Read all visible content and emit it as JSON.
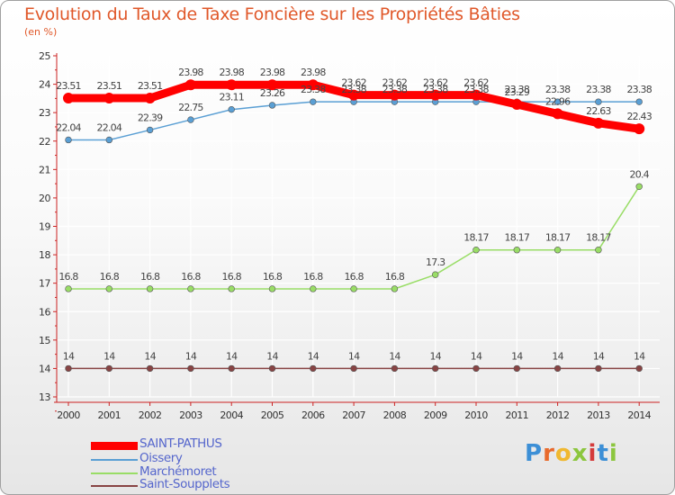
{
  "title": "Evolution du Taux de Taxe Foncière sur les Propriétés Bâties",
  "subtitle": "(en %)",
  "logo": {
    "text": "Proxiti",
    "letters": [
      "P",
      "r",
      "o",
      "x",
      "i",
      "t",
      "i"
    ],
    "colors": [
      "#3c8fd6",
      "#e86a2c",
      "#f0b830",
      "#8cc63e",
      "#d43b3b",
      "#3c8fd6",
      "#8cc63e"
    ]
  },
  "colors": {
    "title": "#e0582a",
    "axis": "#cc2222",
    "grid": "#ffffff",
    "label": "#444444"
  },
  "chart_data": {
    "type": "line",
    "title": "Evolution du Taux de Taxe Foncière sur les Propriétés Bâties",
    "ylabel": "(en %)",
    "xlabel": "",
    "ylim": [
      13,
      25
    ],
    "yticks": [
      13,
      14,
      15,
      16,
      17,
      18,
      19,
      20,
      21,
      22,
      23,
      24,
      25
    ],
    "x": [
      2000,
      2001,
      2002,
      2003,
      2004,
      2005,
      2006,
      2007,
      2008,
      2009,
      2010,
      2011,
      2012,
      2013,
      2014
    ],
    "legend_position": "bottom-left",
    "series": [
      {
        "name": "SAINT-PATHUS",
        "color": "#ff0000",
        "width": 9,
        "labels": [
          "23.51",
          "23.51",
          "23.51",
          "23.98",
          "23.98",
          "23.98",
          "23.98",
          "23.62",
          "23.62",
          "23.62",
          "23.62",
          "23.29",
          "22.96",
          "22.63",
          "22.43"
        ],
        "values": [
          23.51,
          23.51,
          23.51,
          23.98,
          23.98,
          23.98,
          23.98,
          23.62,
          23.62,
          23.62,
          23.62,
          23.29,
          22.96,
          22.63,
          22.43
        ]
      },
      {
        "name": "Oissery",
        "color": "#5a9fd4",
        "width": 1.5,
        "labels": [
          "22.04",
          "22.04",
          "22.39",
          "22.75",
          "23.11",
          "23.26",
          "23.38",
          "23.38",
          "23.38",
          "23.38",
          "23.38",
          "23.38",
          "23.38",
          "23.38",
          "23.38"
        ],
        "values": [
          22.04,
          22.04,
          22.39,
          22.75,
          23.11,
          23.26,
          23.38,
          23.38,
          23.38,
          23.38,
          23.38,
          23.38,
          23.38,
          23.38,
          23.38
        ]
      },
      {
        "name": "Marchémoret",
        "color": "#99dd66",
        "width": 1.5,
        "labels": [
          "16.8",
          "16.8",
          "16.8",
          "16.8",
          "16.8",
          "16.8",
          "16.8",
          "16.8",
          "16.8",
          "17.3",
          "18.17",
          "18.17",
          "18.17",
          "18.17",
          "20.4"
        ],
        "values": [
          16.8,
          16.8,
          16.8,
          16.8,
          16.8,
          16.8,
          16.8,
          16.8,
          16.8,
          17.3,
          18.17,
          18.17,
          18.17,
          18.17,
          20.4
        ]
      },
      {
        "name": "Saint-Soupplets",
        "color": "#884444",
        "width": 1.5,
        "labels": [
          "14",
          "14",
          "14",
          "14",
          "14",
          "14",
          "14",
          "14",
          "14",
          "14",
          "14",
          "14",
          "14",
          "14",
          "14"
        ],
        "values": [
          14,
          14,
          14,
          14,
          14,
          14,
          14,
          14,
          14,
          14,
          14,
          14,
          14,
          14,
          14
        ]
      }
    ]
  }
}
